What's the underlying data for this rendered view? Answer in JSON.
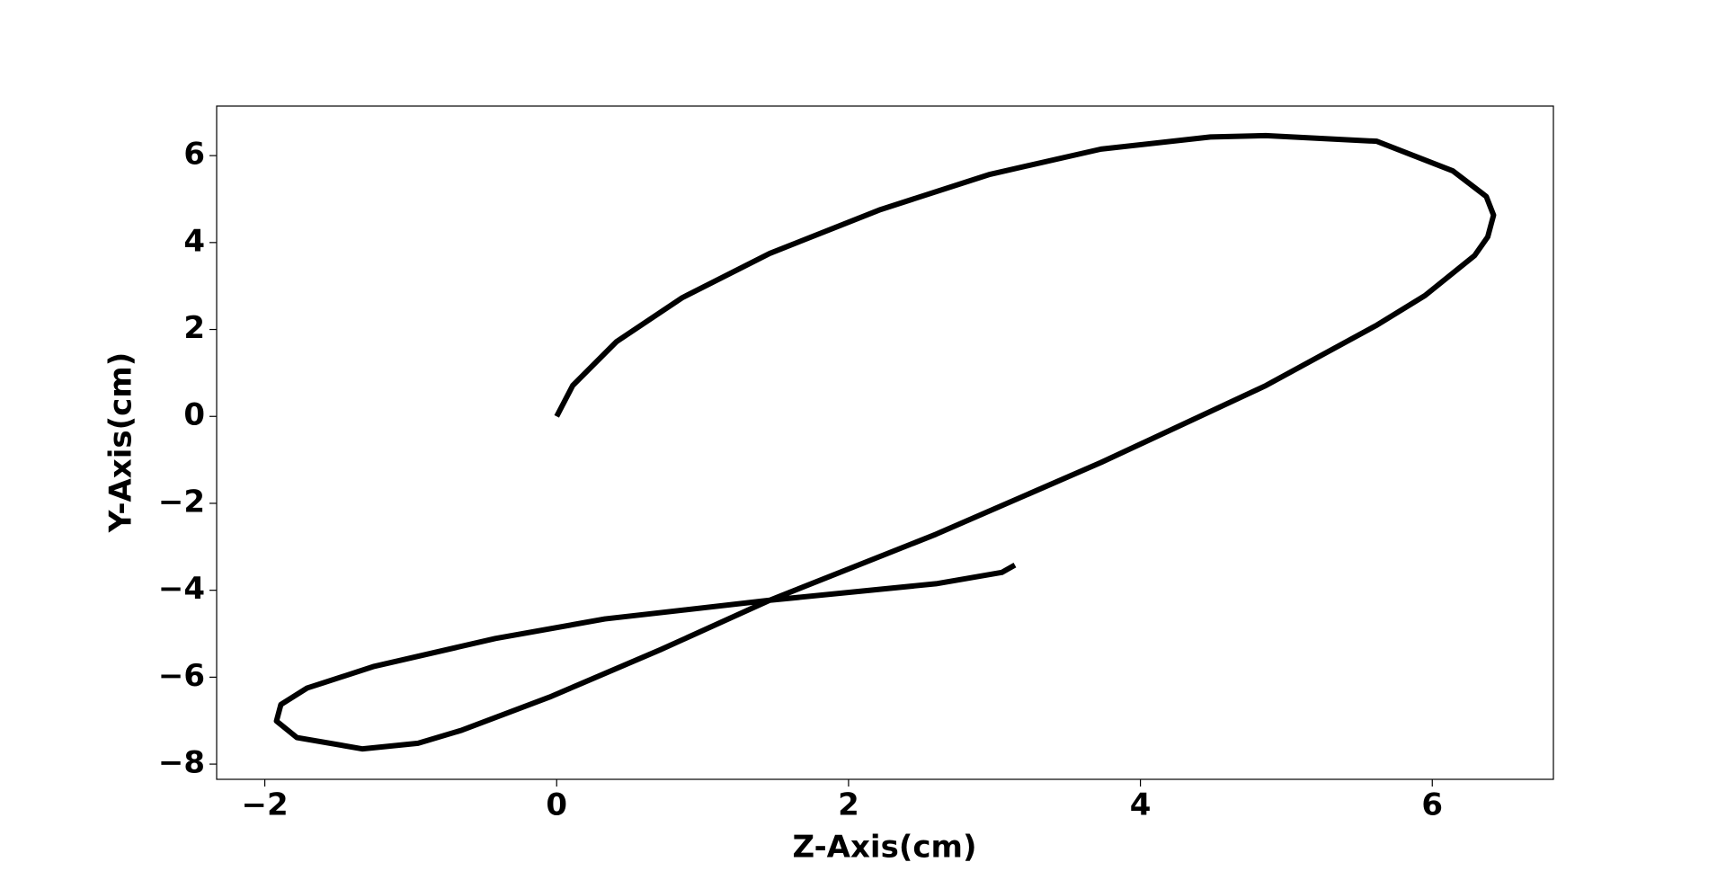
{
  "chart_data": {
    "type": "line",
    "x_label": "Z-Axis(cm)",
    "y_label": "Y-Axis(cm)",
    "series": [
      {
        "color": "#000000",
        "x": [
          0,
          0.11,
          0.41,
          0.86,
          1.46,
          2.22,
          2.97,
          3.73,
          4.48,
          4.86,
          5.62,
          6.14,
          6.37,
          6.42,
          6.38,
          6.29,
          5.95,
          5.62,
          4.86,
          3.73,
          2.6,
          1.46,
          0.71,
          -0.05,
          -0.65,
          -0.95,
          -1.33,
          -1.78,
          -1.92,
          -1.89,
          -1.71,
          -1.25,
          -0.42,
          0.33,
          1.46,
          2.6,
          3.05,
          3.14
        ],
        "values": [
          0,
          0.71,
          1.72,
          2.73,
          3.75,
          4.76,
          5.57,
          6.15,
          6.43,
          6.46,
          6.33,
          5.65,
          5.06,
          4.63,
          4.13,
          3.7,
          2.78,
          2.1,
          0.71,
          -1.06,
          -2.71,
          -4.23,
          -5.37,
          -6.46,
          -7.22,
          -7.52,
          -7.65,
          -7.39,
          -7.01,
          -6.63,
          -6.25,
          -5.75,
          -5.11,
          -4.66,
          -4.23,
          -3.85,
          -3.59,
          -3.42
        ]
      }
    ],
    "xlim": [
      -2.33,
      6.83
    ],
    "ylim": [
      -8.35,
      7.14
    ],
    "xticks": [
      {
        "value": -2,
        "label": "−2"
      },
      0,
      2,
      4,
      6
    ],
    "yticks": [
      {
        "value": -8,
        "label": "−8"
      },
      {
        "value": -6,
        "label": "−6"
      },
      {
        "value": -4,
        "label": "−4"
      },
      {
        "value": -2,
        "label": "−2"
      },
      0,
      2,
      4,
      6
    ]
  }
}
